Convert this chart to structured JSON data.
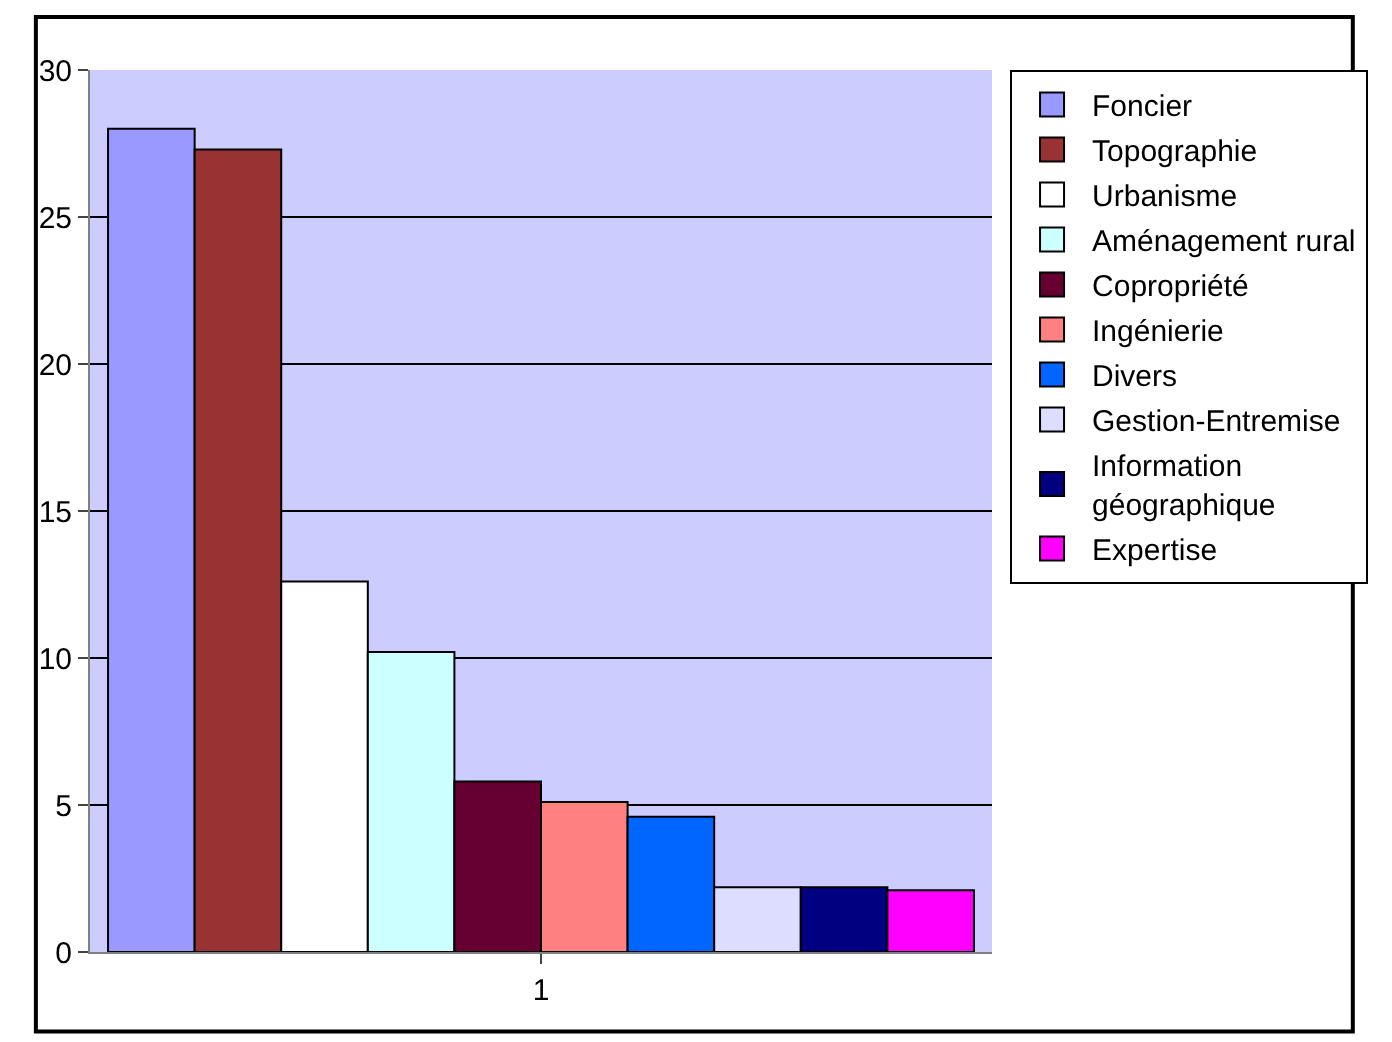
{
  "chart_data": {
    "type": "bar",
    "categories": [
      "1"
    ],
    "ylim": [
      0,
      30
    ],
    "yticks": [
      0,
      5,
      10,
      15,
      20,
      25,
      30
    ],
    "grid": "y",
    "legend": "right",
    "series": [
      {
        "name": "Foncier",
        "color": "#9999ff",
        "values": [
          28
        ]
      },
      {
        "name": "Topographie",
        "color": "#993333",
        "values": [
          27.3
        ]
      },
      {
        "name": "Urbanisme",
        "color": "#ffffff",
        "values": [
          12.6
        ]
      },
      {
        "name": "Aménagement rural",
        "color": "#ccffff",
        "values": [
          10.2
        ]
      },
      {
        "name": "Copropriété",
        "color": "#660033",
        "values": [
          5.8
        ]
      },
      {
        "name": "Ingénierie",
        "color": "#ff8080",
        "values": [
          5.1
        ]
      },
      {
        "name": "Divers",
        "color": "#0066ff",
        "values": [
          4.6
        ]
      },
      {
        "name": "Gestion-Entremise",
        "color": "#ddddff",
        "values": [
          2.2
        ]
      },
      {
        "name": "Information géographique",
        "color": "#000080",
        "values": [
          2.2
        ]
      },
      {
        "name": "Expertise",
        "color": "#ff00ff",
        "values": [
          2.1
        ]
      }
    ]
  }
}
